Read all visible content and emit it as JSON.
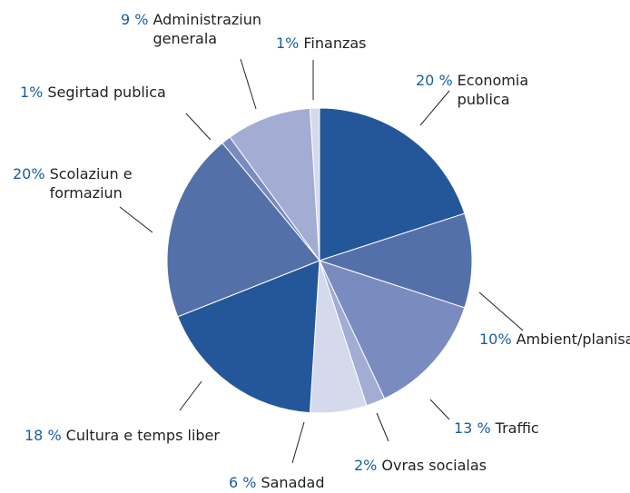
{
  "chart_data": {
    "type": "pie",
    "categories": [
      "Economia publica",
      "Ambient/planisazun",
      "Traffic",
      "Ovras socialas",
      "Sanadad",
      "Cultura e temps liber",
      "Scolaziun e formaziun",
      "Segirtad publica",
      "Administraziun generala",
      "Finanzas"
    ],
    "values": [
      20,
      10,
      13,
      2,
      6,
      18,
      20,
      1,
      9,
      1
    ],
    "value_labels": [
      "20 %",
      "10%",
      "13 %",
      "2%",
      "6 %",
      "18 %",
      "20%",
      "1%",
      "9 %",
      "1%"
    ],
    "colors": [
      "#23579a",
      "#5470a8",
      "#7a8cbf",
      "#a3acd3",
      "#d5d9ec",
      "#23579a",
      "#5470a8",
      "#7a8cbf",
      "#a3acd3",
      "#d5d9ec"
    ]
  }
}
